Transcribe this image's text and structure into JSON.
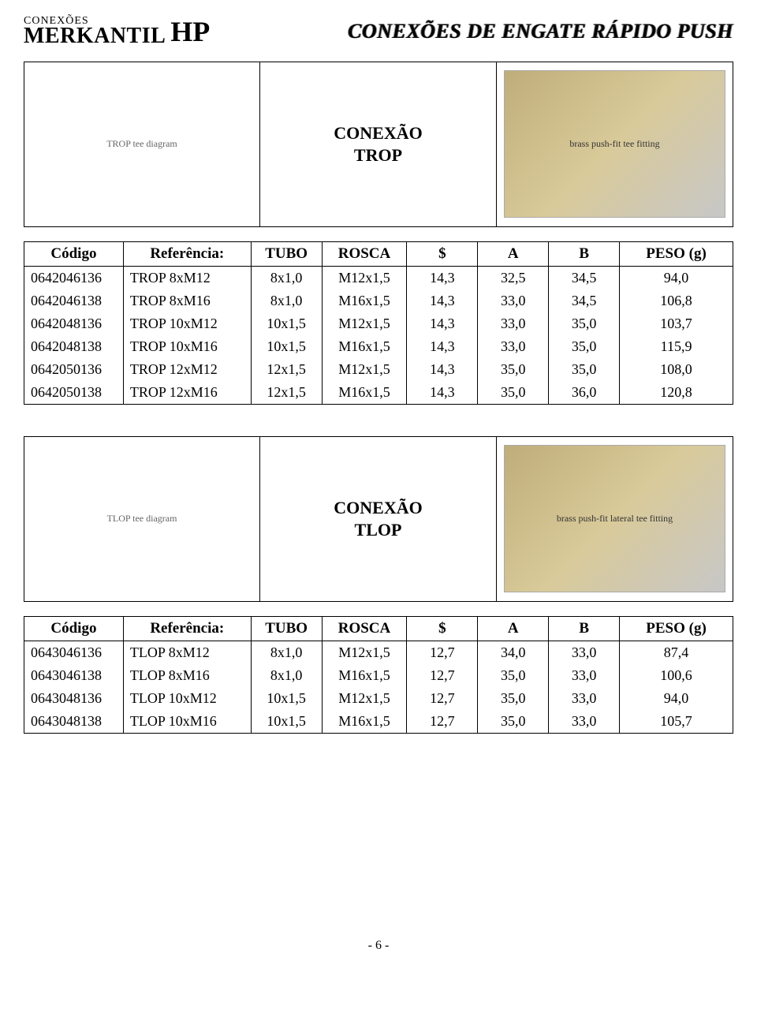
{
  "header": {
    "logo_small": "CONEXÕES",
    "logo_big": "MERKANTIL",
    "logo_glyph": "HP",
    "page_title": "CONEXÕES DE ENGATE RÁPIDO PUSH"
  },
  "columns": {
    "codigo": "Código",
    "referencia": "Referência:",
    "tubo": "TUBO",
    "rosca": "ROSCA",
    "dol": "$",
    "a": "A",
    "b": "B",
    "peso": "PESO (g)"
  },
  "blocks": [
    {
      "label_line1": "CONEXÃO",
      "label_line2": "TROP",
      "diagram_hint": "TROP tee diagram",
      "photo_hint": "brass push-fit tee fitting",
      "rows": [
        {
          "codigo": "0642046136",
          "ref": "TROP 8xM12",
          "tubo": "8x1,0",
          "rosca": "M12x1,5",
          "dol": "14,3",
          "a": "32,5",
          "b": "34,5",
          "peso": "94,0"
        },
        {
          "codigo": "0642046138",
          "ref": "TROP 8xM16",
          "tubo": "8x1,0",
          "rosca": "M16x1,5",
          "dol": "14,3",
          "a": "33,0",
          "b": "34,5",
          "peso": "106,8"
        },
        {
          "codigo": "0642048136",
          "ref": "TROP 10xM12",
          "tubo": "10x1,5",
          "rosca": "M12x1,5",
          "dol": "14,3",
          "a": "33,0",
          "b": "35,0",
          "peso": "103,7"
        },
        {
          "codigo": "0642048138",
          "ref": "TROP 10xM16",
          "tubo": "10x1,5",
          "rosca": "M16x1,5",
          "dol": "14,3",
          "a": "33,0",
          "b": "35,0",
          "peso": "115,9"
        },
        {
          "codigo": "0642050136",
          "ref": "TROP 12xM12",
          "tubo": "12x1,5",
          "rosca": "M12x1,5",
          "dol": "14,3",
          "a": "35,0",
          "b": "35,0",
          "peso": "108,0"
        },
        {
          "codigo": "0642050138",
          "ref": "TROP 12xM16",
          "tubo": "12x1,5",
          "rosca": "M16x1,5",
          "dol": "14,3",
          "a": "35,0",
          "b": "36,0",
          "peso": "120,8"
        }
      ]
    },
    {
      "label_line1": "CONEXÃO",
      "label_line2": "TLOP",
      "diagram_hint": "TLOP tee diagram",
      "photo_hint": "brass push-fit lateral tee fitting",
      "rows": [
        {
          "codigo": "0643046136",
          "ref": "TLOP 8xM12",
          "tubo": "8x1,0",
          "rosca": "M12x1,5",
          "dol": "12,7",
          "a": "34,0",
          "b": "33,0",
          "peso": "87,4"
        },
        {
          "codigo": "0643046138",
          "ref": "TLOP 8xM16",
          "tubo": "8x1,0",
          "rosca": "M16x1,5",
          "dol": "12,7",
          "a": "35,0",
          "b": "33,0",
          "peso": "100,6"
        },
        {
          "codigo": "0643048136",
          "ref": "TLOP 10xM12",
          "tubo": "10x1,5",
          "rosca": "M12x1,5",
          "dol": "12,7",
          "a": "35,0",
          "b": "33,0",
          "peso": "94,0"
        },
        {
          "codigo": "0643048138",
          "ref": "TLOP 10xM16",
          "tubo": "10x1,5",
          "rosca": "M16x1,5",
          "dol": "12,7",
          "a": "35,0",
          "b": "33,0",
          "peso": "105,7"
        }
      ]
    }
  ],
  "footer": {
    "page_number": "- 6 -"
  }
}
